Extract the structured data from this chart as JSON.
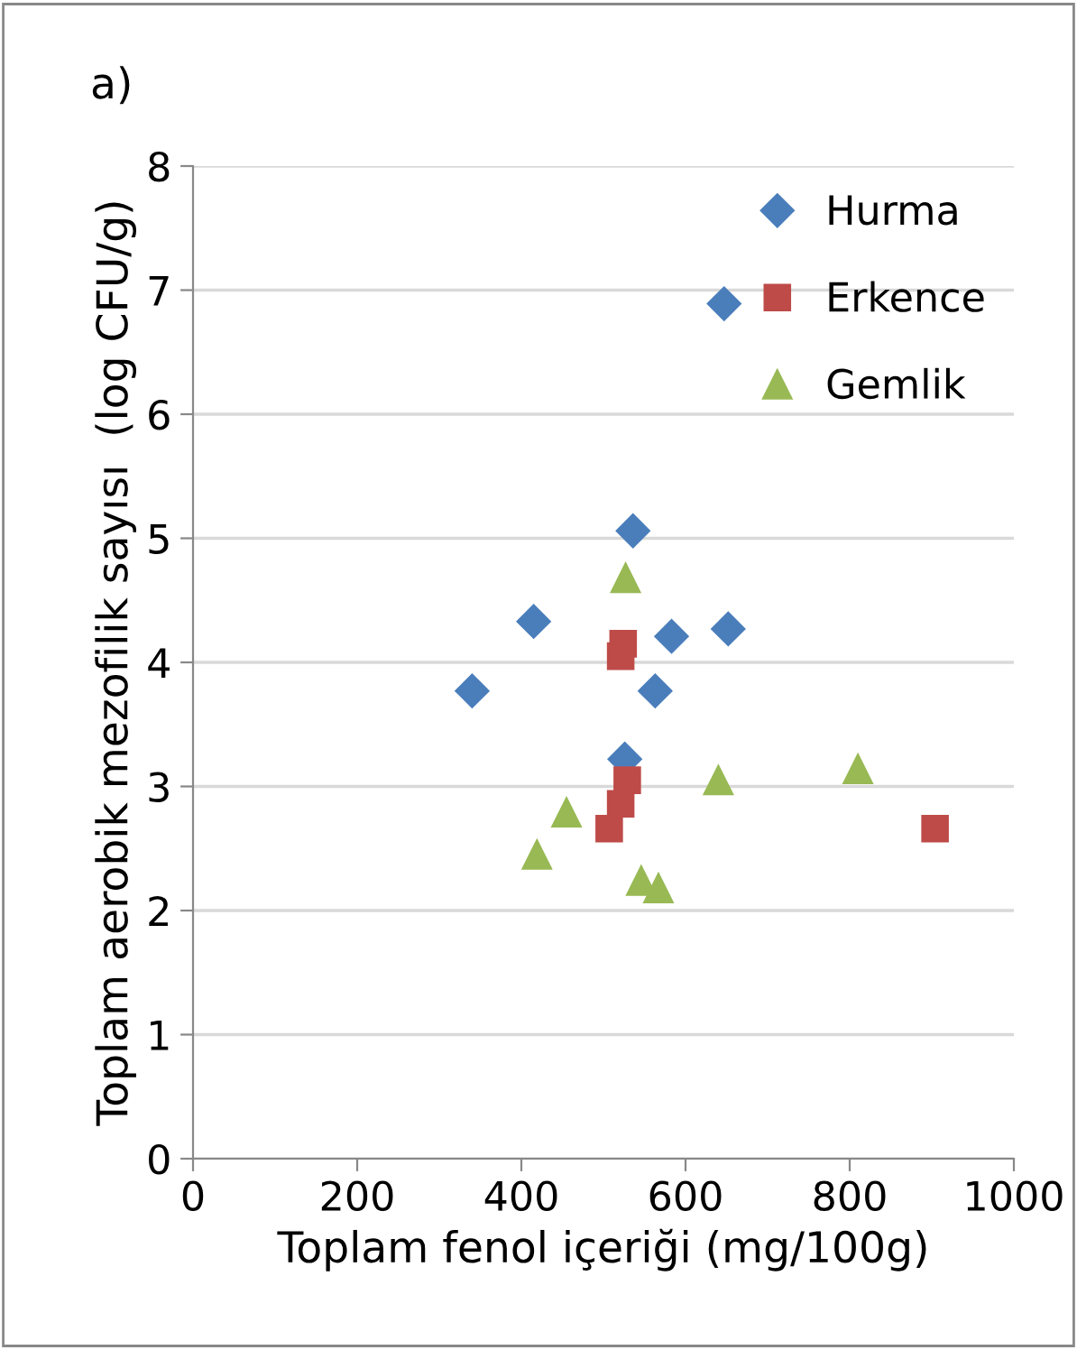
{
  "chart_data": {
    "type": "scatter",
    "xlabel": "Toplam fenol içeriği (mg/100g)",
    "ylabel": "Toplam aerobik mezofilik sayısı  (log CFU/g)",
    "annotations": [
      "a)"
    ],
    "xlim": [
      0,
      1000
    ],
    "xticks": [
      0,
      200,
      400,
      600,
      800,
      1000
    ],
    "ylim": [
      0,
      8
    ],
    "yticks": [
      0,
      1,
      2,
      3,
      4,
      5,
      6,
      7,
      8
    ],
    "grid": "y",
    "legend": "top right",
    "series": [
      {
        "name": "Hurma",
        "color": "#4a7ebb",
        "marker": "diamond",
        "x": [
          647,
          536,
          415,
          583,
          652,
          340,
          563,
          526
        ],
        "values": [
          6.89,
          5.06,
          4.33,
          4.21,
          4.27,
          3.77,
          3.77,
          3.22
        ]
      },
      {
        "name": "Erkence",
        "color": "#be4b48",
        "marker": "square",
        "x": [
          524,
          521,
          529,
          521,
          507,
          904
        ],
        "values": [
          4.15,
          4.05,
          3.05,
          2.86,
          2.66,
          2.66
        ]
      },
      {
        "name": "Gemlik",
        "color": "#98b954",
        "marker": "triangle",
        "x": [
          527,
          640,
          810,
          455,
          419,
          546,
          567
        ],
        "values": [
          4.68,
          3.05,
          3.14,
          2.79,
          2.45,
          2.24,
          2.18
        ]
      }
    ]
  }
}
